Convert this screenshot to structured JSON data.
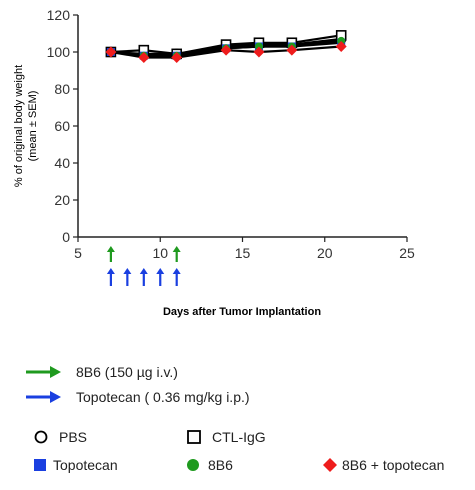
{
  "chart_data": {
    "type": "line",
    "xlabel": "Days  after Tumor Implantation",
    "ylabel_line1": "% of original body weight",
    "ylabel_line2": "(mean ± SEM)",
    "xlim": [
      5,
      25
    ],
    "ylim": [
      0,
      120
    ],
    "xticks": [
      5,
      10,
      15,
      20,
      25
    ],
    "yticks": [
      0,
      20,
      40,
      60,
      80,
      100,
      120
    ],
    "grid": false,
    "legend_position": "bottom",
    "series": [
      {
        "name": "PBS",
        "marker": "open-circle",
        "color": "#000000",
        "x": [
          7,
          9,
          11,
          14,
          16,
          18,
          21
        ],
        "y": [
          100,
          99,
          99,
          103,
          104,
          104,
          107
        ]
      },
      {
        "name": "CTL-IgG",
        "marker": "open-square",
        "color": "#000000",
        "x": [
          7,
          9,
          11,
          14,
          16,
          18,
          21
        ],
        "y": [
          100,
          101,
          99,
          104,
          105,
          105,
          109
        ]
      },
      {
        "name": "Topotecan",
        "marker": "filled-square",
        "color": "#1a3fe0",
        "x": [
          7,
          9,
          11,
          14,
          16,
          18,
          21
        ],
        "y": [
          100,
          98,
          98,
          102,
          103,
          103,
          105
        ]
      },
      {
        "name": "8B6",
        "marker": "filled-circle",
        "color": "#1f9a1f",
        "x": [
          7,
          9,
          11,
          14,
          16,
          18,
          21
        ],
        "y": [
          100,
          98,
          98,
          102,
          103,
          103,
          106
        ]
      },
      {
        "name": "8B6 + topotecan",
        "marker": "filled-diamond",
        "color": "#ee1c1c",
        "x": [
          7,
          9,
          11,
          14,
          16,
          18,
          21
        ],
        "y": [
          100,
          97,
          97,
          101,
          100,
          101,
          103
        ]
      }
    ],
    "dosing_arrows": [
      {
        "label": "8B6 (150 µg i.v.)",
        "color": "#1f9a1f",
        "days": [
          7,
          11
        ]
      },
      {
        "label": "Topotecan ( 0.36 mg/kg i.p.)",
        "color": "#1a3fe0",
        "days": [
          7,
          8,
          9,
          10,
          11
        ]
      }
    ]
  },
  "legend": {
    "pbs": "PBS",
    "ctl_igg": "CTL-IgG",
    "topotecan": "Topotecan",
    "b86": "8B6",
    "combo": "8B6 + topotecan",
    "arrow_8b6": "8B6 (150 µg i.v.)",
    "arrow_topotecan": "Topotecan ( 0.36 mg/kg i.p.)"
  }
}
